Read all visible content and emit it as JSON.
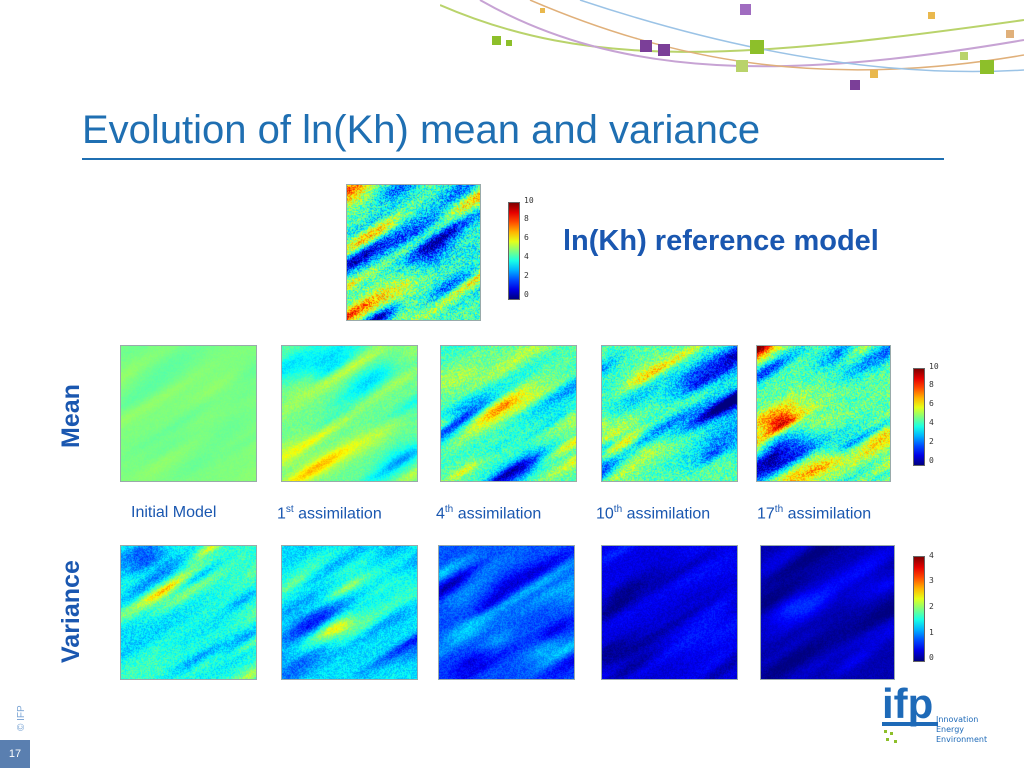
{
  "slide": {
    "title": "Evolution of ln(Kh) mean and variance",
    "reference_label": "ln(Kh) reference model",
    "row_labels": {
      "mean": "Mean",
      "variance": "Variance"
    },
    "captions": [
      {
        "base": "Initial Model",
        "sup": "",
        "rest": ""
      },
      {
        "base": "1",
        "sup": "st",
        "rest": " assimilation"
      },
      {
        "base": "4",
        "sup": "th",
        "rest": " assimilation"
      },
      {
        "base": "10",
        "sup": "th",
        "rest": " assimilation"
      },
      {
        "base": "17",
        "sup": "th",
        "rest": " assimilation"
      }
    ],
    "colorbars": {
      "reference": [
        "10",
        "8",
        "6",
        "4",
        "2",
        "0"
      ],
      "mean": [
        "10",
        "8",
        "6",
        "4",
        "2",
        "0"
      ],
      "variance": [
        "4",
        "3",
        "2",
        "1",
        "0"
      ]
    },
    "copyright": "© IFP",
    "slide_number": "17"
  },
  "logo": {
    "name": "ifp",
    "line1": "Innovation",
    "line2": "Energy",
    "line3": "Environment"
  },
  "colors": {
    "accent": "#1f6fb2",
    "label_blue": "#1a57b0",
    "logo_blue": "#1e6ab8"
  },
  "fields": {
    "reference": {
      "mean_level": 0.45,
      "contrast": 1.0,
      "hot": 1.0
    },
    "mean": [
      {
        "mean_level": 0.5,
        "contrast": 0.08,
        "hot": 0.0
      },
      {
        "mean_level": 0.48,
        "contrast": 0.28,
        "hot": 0.2
      },
      {
        "mean_level": 0.46,
        "contrast": 0.6,
        "hot": 0.6
      },
      {
        "mean_level": 0.46,
        "contrast": 0.75,
        "hot": 0.85
      },
      {
        "mean_level": 0.46,
        "contrast": 0.8,
        "hot": 0.9
      }
    ],
    "variance": [
      {
        "mean_level": 0.42,
        "contrast": 0.5,
        "hot": 0.9
      },
      {
        "mean_level": 0.35,
        "contrast": 0.45,
        "hot": 0.5
      },
      {
        "mean_level": 0.2,
        "contrast": 0.35,
        "hot": 0.0
      },
      {
        "mean_level": 0.1,
        "contrast": 0.25,
        "hot": 0.0
      },
      {
        "mean_level": 0.05,
        "contrast": 0.18,
        "hot": 0.0
      }
    ]
  }
}
